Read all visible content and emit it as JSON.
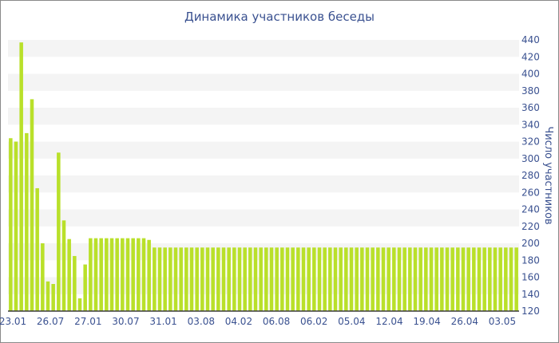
{
  "chart_data": {
    "type": "bar",
    "title": "Динамика участников беседы",
    "ylabel": "Число участников",
    "xlabel": "",
    "ylim": [
      120,
      440
    ],
    "yticks": [
      120,
      140,
      160,
      180,
      200,
      220,
      240,
      260,
      280,
      300,
      320,
      340,
      360,
      380,
      400,
      420,
      440
    ],
    "xtick_labels": [
      "23.01",
      "26.07",
      "27.01",
      "30.07",
      "31.01",
      "03.08",
      "04.02",
      "06.08",
      "06.02",
      "05.04",
      "12.04",
      "19.04",
      "26.04",
      "03.05"
    ],
    "bar_color": "#b9e02a",
    "grid_band_color": "#f4f4f4",
    "legend": "none",
    "values": [
      324,
      320,
      437,
      330,
      370,
      265,
      200,
      155,
      152,
      307,
      227,
      205,
      185,
      135,
      175,
      206,
      206,
      206,
      206,
      206,
      206,
      206,
      206,
      206,
      206,
      206,
      204,
      195,
      195,
      195,
      195,
      195,
      195,
      195,
      195,
      195,
      195,
      195,
      195,
      195,
      195,
      195,
      195,
      195,
      195,
      195,
      195,
      195,
      195,
      195,
      195,
      195,
      195,
      195,
      195,
      195,
      195,
      195,
      195,
      195,
      195,
      195,
      195,
      195,
      195,
      195,
      195,
      195,
      195,
      195,
      195,
      195,
      195,
      195,
      195,
      195,
      195,
      195,
      195,
      195,
      195,
      195,
      195,
      195,
      195,
      195,
      195,
      195,
      195,
      195,
      195,
      195,
      195,
      195,
      195,
      195
    ]
  }
}
